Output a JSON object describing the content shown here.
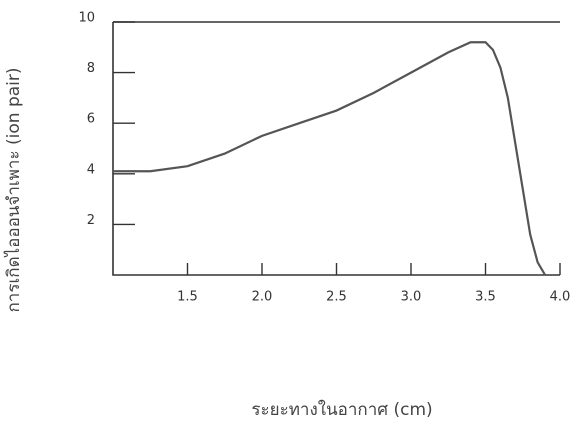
{
  "chart_data": {
    "type": "line",
    "x_label": "ระยะทางในอากาศ (cm)",
    "y_label": "การเกิดไอออนจำเพาะ (ion pair)",
    "x": [
      1.0,
      1.25,
      1.5,
      1.75,
      2.0,
      2.25,
      2.5,
      2.75,
      3.0,
      3.25,
      3.4,
      3.5,
      3.55,
      3.6,
      3.65,
      3.7,
      3.75,
      3.8,
      3.85,
      3.9
    ],
    "series": [
      {
        "color": "#555555",
        "values": [
          4.1,
          4.1,
          4.3,
          4.8,
          5.5,
          6.0,
          6.5,
          7.2,
          8.0,
          8.8,
          9.2,
          9.2,
          8.9,
          8.2,
          7.0,
          5.2,
          3.4,
          1.6,
          0.5,
          0.0
        ]
      }
    ],
    "xlim": [
      1.0,
      4.0
    ],
    "ylim": [
      0,
      10
    ],
    "xticks": [
      1.5,
      {
        "value": 2,
        "label": "2.0"
      },
      2.5,
      {
        "value": 3,
        "label": "3.0"
      },
      3.5,
      {
        "value": 4,
        "label": "4.0"
      }
    ],
    "yticks": [
      2,
      4,
      6,
      8,
      10
    ]
  }
}
